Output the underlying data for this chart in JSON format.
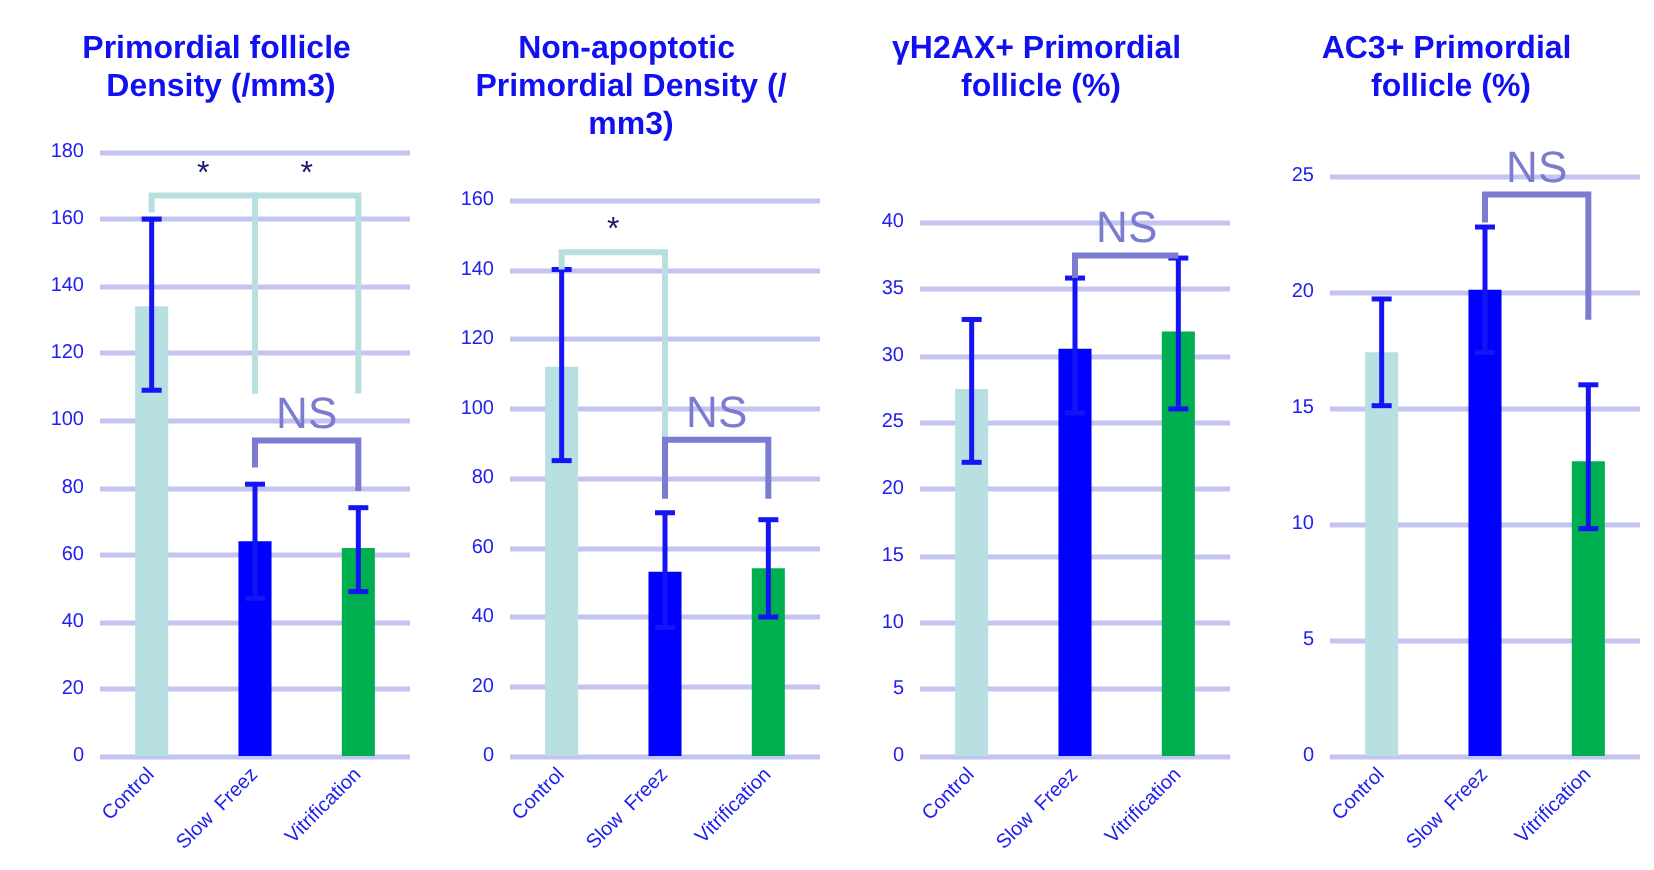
{
  "chart_data": [
    {
      "type": "bar",
      "title": "Primordial follicle Density (/mm3)",
      "categories": [
        "Control",
        "Slow  Freez",
        "Vitrification"
      ],
      "values": [
        134,
        64,
        62
      ],
      "colors": [
        "#b8dfe2",
        "#0000ff",
        "#00b050"
      ],
      "errors": [
        [
          109,
          160
        ],
        [
          47,
          81
        ],
        [
          49,
          74
        ]
      ],
      "ylim": [
        0,
        180
      ],
      "yticks": [
        0,
        20,
        40,
        60,
        80,
        100,
        120,
        140,
        160,
        180
      ],
      "grid": "y",
      "annotations": [
        "*",
        "*",
        "NS"
      ]
    },
    {
      "type": "bar",
      "title": "Non-apoptotic Primordial Density (/mm3)",
      "categories": [
        "Control",
        "Slow  Freez",
        "Vitrification"
      ],
      "values": [
        112,
        53,
        54
      ],
      "colors": [
        "#b8dfe2",
        "#0000ff",
        "#00b050"
      ],
      "errors": [
        [
          85,
          140
        ],
        [
          37,
          70
        ],
        [
          40,
          68
        ]
      ],
      "ylim": [
        0,
        160
      ],
      "yticks": [
        0,
        20,
        40,
        60,
        80,
        100,
        120,
        140,
        160
      ],
      "grid": "y",
      "annotations": [
        "*",
        "NS"
      ]
    },
    {
      "type": "bar",
      "title": "γH2AX+ Primordial follicle (%)",
      "categories": [
        "Control",
        "Slow  Freez",
        "Vitrification"
      ],
      "values": [
        27.5,
        30.5,
        31.8
      ],
      "colors": [
        "#b8dfe2",
        "#0000ff",
        "#00b050"
      ],
      "errors": [
        [
          22,
          32.7
        ],
        [
          25.7,
          35.8
        ],
        [
          26,
          37.3
        ]
      ],
      "ylim": [
        0,
        40
      ],
      "yticks": [
        0,
        5,
        10,
        15,
        20,
        25,
        30,
        35,
        40
      ],
      "grid": "y",
      "annotations": [
        "NS"
      ]
    },
    {
      "type": "bar",
      "title": "AC3+ Primordial follicle (%)",
      "categories": [
        "Control",
        "Slow  Freez",
        "Vitrification"
      ],
      "values": [
        17.4,
        20.1,
        12.7
      ],
      "colors": [
        "#b8dfe2",
        "#0000ff",
        "#00b050"
      ],
      "errors": [
        [
          15.1,
          19.7
        ],
        [
          17.4,
          22.8
        ],
        [
          9.8,
          16
        ]
      ],
      "ylim": [
        0,
        25
      ],
      "yticks": [
        0,
        5,
        10,
        15,
        20,
        25
      ],
      "grid": "y",
      "annotations": [
        "NS"
      ]
    }
  ]
}
